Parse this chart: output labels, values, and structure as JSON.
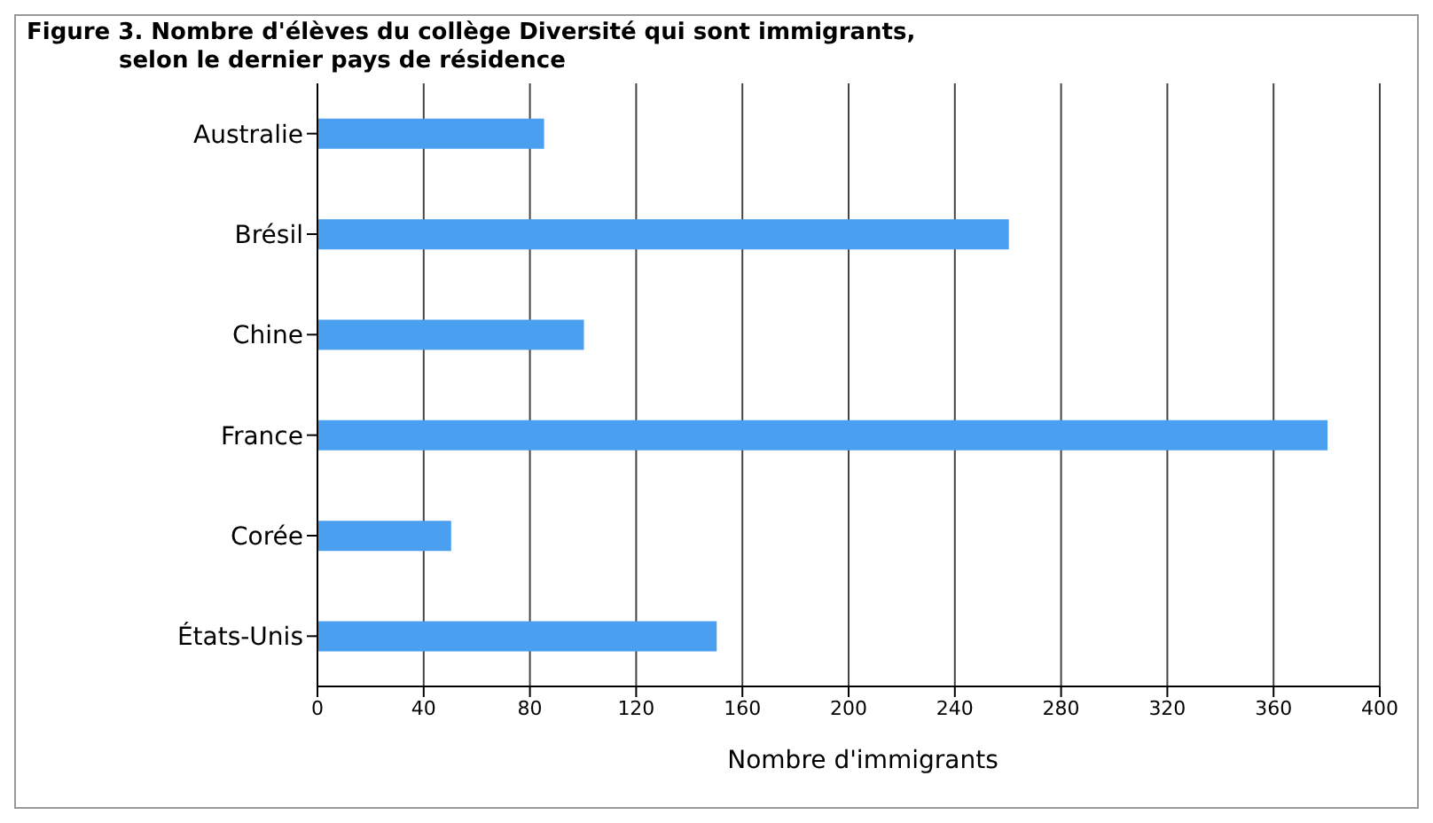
{
  "chart_data": {
    "type": "bar",
    "orientation": "horizontal",
    "title": "Figure 3. Nombre d'élèves du collège Diversité qui sont immigrants,\nselon le dernier pays de résidence",
    "xlabel": "Nombre d'immigrants",
    "categories": [
      "Australie",
      "Brésil",
      "Chine",
      "France",
      "Corée",
      "États-Unis"
    ],
    "values": [
      85,
      260,
      100,
      380,
      50,
      150
    ],
    "color": "#4a9ff0",
    "xlim": [
      0,
      400
    ],
    "xticks": [
      0,
      40,
      80,
      120,
      160,
      200,
      240,
      280,
      320,
      360,
      400
    ],
    "grid": "x"
  }
}
